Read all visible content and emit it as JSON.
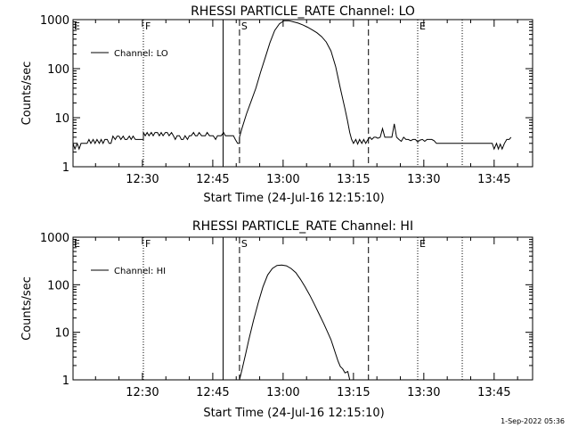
{
  "footer": {
    "stamp": "1-Sep-2022 05:36"
  },
  "chart_data": [
    {
      "type": "line",
      "title": "RHESSI PARTICLE_RATE Channel: LO",
      "xlabel": "Start Time (24-Jul-16 12:15:10)",
      "ylabel": "Counts/sec",
      "yscale": "log",
      "ylim": [
        1,
        1000
      ],
      "xlim_minutes": [
        0,
        98
      ],
      "x_ticks": [
        {
          "label": "12:30",
          "t": 14.8
        },
        {
          "label": "12:45",
          "t": 29.8
        },
        {
          "label": "13:00",
          "t": 44.8
        },
        {
          "label": "13:15",
          "t": 59.8
        },
        {
          "label": "13:30",
          "t": 74.8
        },
        {
          "label": "13:45",
          "t": 89.8
        }
      ],
      "y_ticks": [
        {
          "label": "1",
          "v": 1
        },
        {
          "label": "10",
          "v": 10
        },
        {
          "label": "100",
          "v": 100
        },
        {
          "label": "1000",
          "v": 1000
        }
      ],
      "legend": {
        "label": "Channel: LO",
        "position": "top-left"
      },
      "markers": [
        {
          "label": "F",
          "t": 15.0,
          "style": "dotted"
        },
        {
          "label": "",
          "t": 32.0,
          "style": "solid"
        },
        {
          "label": "S",
          "t": 35.5,
          "style": "dashed"
        },
        {
          "label": "",
          "t": 63.0,
          "style": "dashed"
        },
        {
          "label": "E",
          "t": 73.5,
          "style": "dotted"
        },
        {
          "label": "",
          "t": 83.0,
          "style": "dotted"
        }
      ],
      "series": [
        {
          "name": "Channel: LO",
          "points": [
            [
              0.0,
              3.0
            ],
            [
              0.4,
              2.3
            ],
            [
              0.9,
              3.0
            ],
            [
              1.3,
              2.3
            ],
            [
              1.7,
              3.0
            ],
            [
              3.0,
              3.0
            ],
            [
              3.4,
              3.6
            ],
            [
              3.8,
              3.0
            ],
            [
              4.3,
              3.6
            ],
            [
              4.7,
              3.0
            ],
            [
              5.1,
              3.6
            ],
            [
              5.6,
              3.0
            ],
            [
              6.0,
              3.6
            ],
            [
              6.4,
              3.0
            ],
            [
              6.8,
              3.6
            ],
            [
              7.3,
              3.6
            ],
            [
              7.7,
              3.0
            ],
            [
              8.1,
              3.0
            ],
            [
              8.5,
              4.2
            ],
            [
              9.0,
              3.6
            ],
            [
              9.4,
              4.2
            ],
            [
              9.8,
              4.2
            ],
            [
              10.2,
              3.6
            ],
            [
              10.7,
              4.2
            ],
            [
              11.1,
              3.6
            ],
            [
              11.5,
              3.6
            ],
            [
              12.0,
              4.2
            ],
            [
              12.4,
              3.6
            ],
            [
              12.8,
              4.2
            ],
            [
              13.3,
              3.6
            ],
            [
              13.7,
              3.6
            ],
            [
              14.1,
              3.6
            ],
            [
              14.5,
              3.6
            ],
            [
              15.0,
              3.6
            ],
            [
              15.0,
              5.0
            ],
            [
              15.4,
              4.3
            ],
            [
              15.8,
              5.0
            ],
            [
              16.2,
              4.3
            ],
            [
              16.7,
              5.0
            ],
            [
              17.1,
              4.3
            ],
            [
              17.5,
              5.0
            ],
            [
              18.0,
              5.0
            ],
            [
              18.4,
              4.3
            ],
            [
              18.8,
              5.0
            ],
            [
              19.2,
              4.3
            ],
            [
              19.7,
              5.0
            ],
            [
              20.1,
              5.0
            ],
            [
              20.5,
              4.3
            ],
            [
              21.0,
              5.0
            ],
            [
              21.4,
              4.3
            ],
            [
              21.8,
              3.6
            ],
            [
              22.2,
              4.3
            ],
            [
              22.7,
              4.3
            ],
            [
              23.1,
              3.6
            ],
            [
              23.5,
              3.6
            ],
            [
              23.9,
              4.3
            ],
            [
              24.4,
              3.6
            ],
            [
              24.8,
              4.3
            ],
            [
              25.2,
              4.3
            ],
            [
              25.7,
              5.0
            ],
            [
              26.1,
              4.3
            ],
            [
              26.5,
              4.3
            ],
            [
              26.9,
              5.0
            ],
            [
              27.4,
              4.3
            ],
            [
              27.8,
              4.3
            ],
            [
              28.2,
              4.3
            ],
            [
              28.6,
              5.0
            ],
            [
              29.1,
              4.3
            ],
            [
              29.5,
              4.3
            ],
            [
              29.9,
              4.3
            ],
            [
              30.4,
              3.6
            ],
            [
              30.8,
              4.3
            ],
            [
              31.2,
              4.3
            ],
            [
              31.6,
              4.3
            ],
            [
              32.1,
              5.0
            ],
            [
              32.5,
              4.3
            ],
            [
              32.9,
              4.3
            ],
            [
              33.3,
              4.3
            ],
            [
              33.8,
              4.3
            ],
            [
              34.2,
              4.3
            ],
            [
              34.6,
              3.6
            ],
            [
              35.1,
              3.0
            ],
            [
              35.5,
              3.0
            ],
            [
              35.5,
              4.0
            ],
            [
              36.0,
              6.0
            ],
            [
              37.0,
              12.0
            ],
            [
              38.0,
              22.0
            ],
            [
              39.0,
              40.0
            ],
            [
              40.0,
              85.0
            ],
            [
              41.0,
              170.0
            ],
            [
              42.0,
              340.0
            ],
            [
              43.0,
              600.0
            ],
            [
              44.0,
              820.0
            ],
            [
              45.0,
              950.0
            ],
            [
              46.0,
              950.0
            ],
            [
              47.0,
              900.0
            ],
            [
              48.0,
              850.0
            ],
            [
              49.0,
              780.0
            ],
            [
              50.0,
              700.0
            ],
            [
              51.0,
              620.0
            ],
            [
              52.0,
              540.0
            ],
            [
              53.0,
              450.0
            ],
            [
              54.0,
              350.0
            ],
            [
              55.0,
              230.0
            ],
            [
              56.0,
              110.0
            ],
            [
              57.0,
              40.0
            ],
            [
              58.0,
              15.0
            ],
            [
              58.5,
              9.0
            ],
            [
              59.0,
              5.0
            ],
            [
              59.4,
              3.6
            ],
            [
              59.8,
              3.0
            ],
            [
              60.3,
              3.6
            ],
            [
              60.7,
              2.9
            ],
            [
              61.1,
              3.6
            ],
            [
              61.6,
              3.0
            ],
            [
              62.0,
              3.6
            ],
            [
              62.4,
              3.0
            ],
            [
              62.9,
              3.6
            ],
            [
              63.3,
              4.0
            ],
            [
              63.7,
              3.6
            ],
            [
              64.2,
              4.0
            ],
            [
              64.6,
              4.0
            ],
            [
              65.0,
              3.8
            ],
            [
              65.5,
              4.0
            ],
            [
              66.0,
              6.0
            ],
            [
              66.5,
              4.0
            ],
            [
              67.0,
              4.0
            ],
            [
              67.5,
              4.0
            ],
            [
              68.0,
              4.0
            ],
            [
              68.5,
              7.5
            ],
            [
              69.0,
              4.0
            ],
            [
              69.5,
              3.6
            ],
            [
              70.0,
              3.3
            ],
            [
              70.5,
              4.0
            ],
            [
              71.0,
              3.6
            ],
            [
              71.5,
              3.6
            ],
            [
              72.0,
              3.4
            ],
            [
              72.5,
              3.6
            ],
            [
              73.0,
              3.6
            ],
            [
              73.5,
              3.2
            ],
            [
              74.0,
              3.5
            ],
            [
              74.5,
              3.6
            ],
            [
              75.0,
              3.3
            ],
            [
              75.5,
              3.6
            ],
            [
              76.0,
              3.6
            ],
            [
              76.5,
              3.6
            ],
            [
              77.0,
              3.4
            ],
            [
              77.5,
              3.0
            ],
            [
              78.0,
              3.0
            ],
            [
              79.0,
              3.0
            ],
            [
              80.0,
              3.0
            ],
            [
              81.0,
              3.0
            ],
            [
              82.0,
              3.0
            ],
            [
              83.0,
              3.0
            ],
            [
              84.0,
              3.0
            ],
            [
              85.0,
              3.0
            ],
            [
              86.0,
              3.0
            ],
            [
              87.0,
              3.0
            ],
            [
              88.0,
              3.0
            ],
            [
              89.0,
              3.0
            ],
            [
              89.4,
              3.0
            ],
            [
              89.8,
              2.3
            ],
            [
              90.3,
              3.0
            ],
            [
              90.7,
              2.3
            ],
            [
              91.1,
              2.9
            ],
            [
              91.5,
              2.3
            ],
            [
              92.0,
              3.0
            ],
            [
              92.5,
              3.6
            ],
            [
              93.0,
              3.6
            ],
            [
              93.4,
              4.0
            ]
          ]
        }
      ]
    },
    {
      "type": "line",
      "title": "RHESSI PARTICLE_RATE Channel: HI",
      "xlabel": "Start Time (24-Jul-16 12:15:10)",
      "ylabel": "Counts/sec",
      "yscale": "log",
      "ylim": [
        1,
        1000
      ],
      "xlim_minutes": [
        0,
        98
      ],
      "x_ticks": [
        {
          "label": "12:30",
          "t": 14.8
        },
        {
          "label": "12:45",
          "t": 29.8
        },
        {
          "label": "13:00",
          "t": 44.8
        },
        {
          "label": "13:15",
          "t": 59.8
        },
        {
          "label": "13:30",
          "t": 74.8
        },
        {
          "label": "13:45",
          "t": 89.8
        }
      ],
      "y_ticks": [
        {
          "label": "1",
          "v": 1
        },
        {
          "label": "10",
          "v": 10
        },
        {
          "label": "100",
          "v": 100
        },
        {
          "label": "1000",
          "v": 1000
        }
      ],
      "legend": {
        "label": "Channel: HI",
        "position": "top-left"
      },
      "markers": [
        {
          "label": "F",
          "t": 15.0,
          "style": "dotted"
        },
        {
          "label": "",
          "t": 32.0,
          "style": "solid"
        },
        {
          "label": "S",
          "t": 35.5,
          "style": "dashed"
        },
        {
          "label": "",
          "t": 63.0,
          "style": "dashed"
        },
        {
          "label": "E",
          "t": 73.5,
          "style": "dotted"
        },
        {
          "label": "",
          "t": 83.0,
          "style": "dotted"
        }
      ],
      "series": [
        {
          "name": "Channel: HI",
          "points": [
            [
              35.5,
              1.0
            ],
            [
              36.0,
              1.6
            ],
            [
              36.8,
              3.5
            ],
            [
              37.5,
              7.0
            ],
            [
              38.5,
              18.0
            ],
            [
              39.5,
              42.0
            ],
            [
              40.5,
              90.0
            ],
            [
              41.5,
              160.0
            ],
            [
              42.5,
              220.0
            ],
            [
              43.5,
              255.0
            ],
            [
              44.5,
              260.0
            ],
            [
              45.5,
              250.0
            ],
            [
              46.5,
              220.0
            ],
            [
              47.5,
              180.0
            ],
            [
              48.5,
              130.0
            ],
            [
              49.5,
              90.0
            ],
            [
              50.5,
              60.0
            ],
            [
              51.5,
              38.0
            ],
            [
              52.5,
              24.0
            ],
            [
              53.5,
              15.0
            ],
            [
              54.5,
              9.0
            ],
            [
              55.0,
              7.0
            ],
            [
              55.5,
              5.0
            ],
            [
              56.0,
              3.5
            ],
            [
              56.5,
              2.5
            ],
            [
              57.0,
              1.9
            ],
            [
              57.5,
              1.7
            ],
            [
              58.0,
              1.4
            ],
            [
              58.6,
              1.5
            ],
            [
              59.0,
              1.0
            ]
          ]
        }
      ]
    }
  ]
}
